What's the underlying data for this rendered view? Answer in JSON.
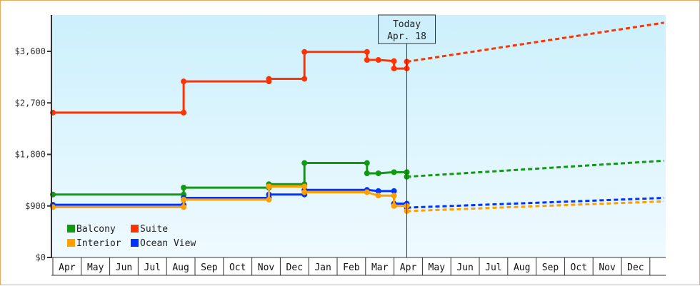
{
  "chart_data": {
    "type": "line",
    "title": "",
    "xlabel": "",
    "ylabel": "",
    "ylim": [
      0,
      4000
    ],
    "y_ticks": [
      {
        "value": 0,
        "label": "$0"
      },
      {
        "value": 900,
        "label": "$900"
      },
      {
        "value": 1800,
        "label": "$1,800"
      },
      {
        "value": 2700,
        "label": "$2,700"
      },
      {
        "value": 3600,
        "label": "$3,600"
      }
    ],
    "x_months": [
      "Apr",
      "May",
      "Jun",
      "Jul",
      "Aug",
      "Sep",
      "Oct",
      "Nov",
      "Dec",
      "Jan",
      "Feb",
      "Mar",
      "Apr",
      "May",
      "Jun",
      "Jul",
      "Aug",
      "Sep",
      "Oct",
      "Nov",
      "Dec",
      ""
    ],
    "today_marker": {
      "line1": "Today",
      "line2": "Apr. 18",
      "month_index": 12.45
    },
    "legend": [
      {
        "name": "Balcony",
        "color": "#119911"
      },
      {
        "name": "Suite",
        "color": "#ff3300"
      },
      {
        "name": "Interior",
        "color": "#ffa000"
      },
      {
        "name": "Ocean View",
        "color": "#0033ff"
      }
    ],
    "series": [
      {
        "name": "Suite",
        "color": "#ff3300",
        "history": [
          [
            0,
            2530
          ],
          [
            4.6,
            2530
          ],
          [
            4.6,
            3075
          ],
          [
            7.6,
            3075
          ],
          [
            7.6,
            3120
          ],
          [
            8.85,
            3120
          ],
          [
            8.85,
            3590
          ],
          [
            11.05,
            3590
          ],
          [
            11.05,
            3450
          ],
          [
            11.45,
            3450
          ],
          [
            12.0,
            3430
          ],
          [
            12.0,
            3300
          ],
          [
            12.45,
            3300
          ],
          [
            12.45,
            3420
          ]
        ],
        "forecast": [
          [
            12.45,
            3420
          ],
          [
            21.5,
            4100
          ]
        ]
      },
      {
        "name": "Balcony",
        "color": "#119911",
        "history": [
          [
            0,
            1100
          ],
          [
            4.6,
            1100
          ],
          [
            4.6,
            1220
          ],
          [
            7.6,
            1220
          ],
          [
            7.6,
            1280
          ],
          [
            8.85,
            1280
          ],
          [
            8.85,
            1650
          ],
          [
            11.05,
            1650
          ],
          [
            11.05,
            1470
          ],
          [
            11.45,
            1470
          ],
          [
            12.0,
            1490
          ],
          [
            12.45,
            1490
          ],
          [
            12.45,
            1410
          ]
        ],
        "forecast": [
          [
            12.45,
            1410
          ],
          [
            21.5,
            1690
          ]
        ]
      },
      {
        "name": "Ocean View",
        "color": "#0033ff",
        "history": [
          [
            0,
            920
          ],
          [
            4.6,
            920
          ],
          [
            4.6,
            1040
          ],
          [
            7.6,
            1040
          ],
          [
            7.6,
            1100
          ],
          [
            8.85,
            1100
          ],
          [
            8.85,
            1180
          ],
          [
            11.05,
            1180
          ],
          [
            11.45,
            1160
          ],
          [
            12.0,
            1160
          ],
          [
            12.0,
            940
          ],
          [
            12.45,
            940
          ],
          [
            12.45,
            870
          ]
        ],
        "forecast": [
          [
            12.45,
            870
          ],
          [
            21.5,
            1040
          ]
        ]
      },
      {
        "name": "Interior",
        "color": "#ffa000",
        "history": [
          [
            0,
            880
          ],
          [
            4.6,
            880
          ],
          [
            4.6,
            1010
          ],
          [
            7.6,
            1010
          ],
          [
            7.6,
            1240
          ],
          [
            8.85,
            1240
          ],
          [
            8.85,
            1140
          ],
          [
            11.05,
            1140
          ],
          [
            11.45,
            1080
          ],
          [
            12.0,
            1080
          ],
          [
            12.0,
            900
          ],
          [
            12.45,
            900
          ],
          [
            12.45,
            810
          ]
        ],
        "forecast": [
          [
            12.45,
            810
          ],
          [
            21.5,
            980
          ]
        ]
      }
    ]
  }
}
